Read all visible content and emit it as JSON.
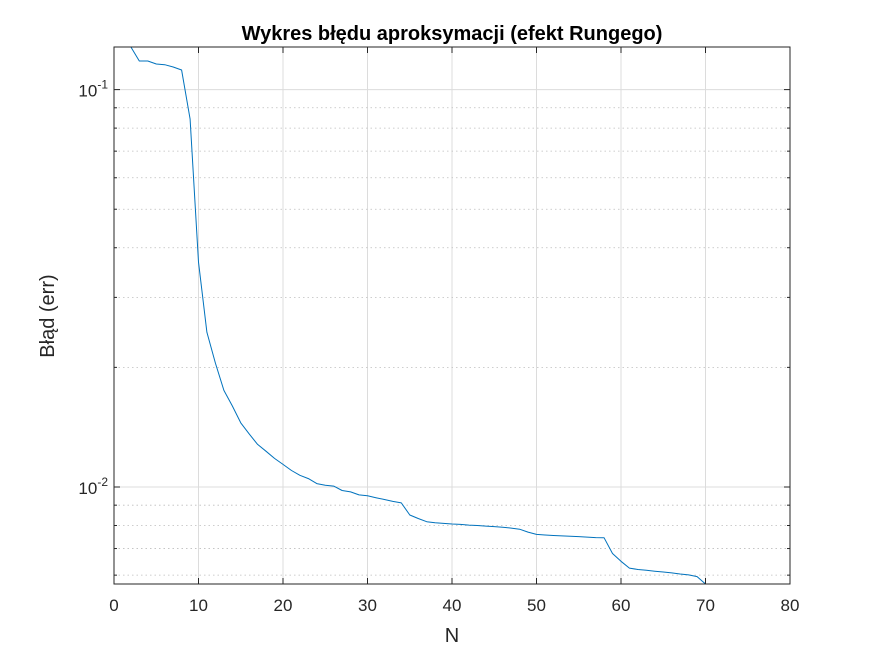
{
  "chart_data": {
    "type": "line",
    "title": "Wykres błędu aproksymacji (efekt Rungego)",
    "xlabel": "N",
    "ylabel": "Błąd (err)",
    "xlim": [
      0,
      80
    ],
    "ylim": [
      0.0057,
      0.128
    ],
    "yscale": "log",
    "grid": true,
    "x_ticks": [
      0,
      10,
      20,
      30,
      40,
      50,
      60,
      70,
      80
    ],
    "y_ticks": [
      {
        "value": 0.1,
        "base": "10",
        "exp": "-1"
      },
      {
        "value": 0.01,
        "base": "10",
        "exp": "-2"
      }
    ],
    "series": [
      {
        "color": "#0072BD",
        "x": [
          1,
          2,
          3,
          4,
          5,
          6,
          7,
          8,
          9,
          10,
          11,
          12,
          13,
          14,
          15,
          16,
          17,
          18,
          19,
          20,
          21,
          22,
          23,
          24,
          25,
          26,
          27,
          28,
          29,
          30,
          31,
          32,
          33,
          34,
          35,
          36,
          37,
          38,
          39,
          40,
          41,
          42,
          43,
          44,
          45,
          46,
          47,
          48,
          49,
          50,
          51,
          52,
          53,
          54,
          55,
          56,
          57,
          58,
          59,
          60,
          61,
          62,
          63,
          64,
          65,
          66,
          67,
          68,
          69,
          70,
          71
        ],
        "y": [
          0.128,
          0.128,
          0.118,
          0.118,
          0.116,
          0.1155,
          0.114,
          0.112,
          0.0843,
          0.0368,
          0.0245,
          0.0205,
          0.0175,
          0.016,
          0.0145,
          0.0136,
          0.0128,
          0.0123,
          0.0118,
          0.0114,
          0.011,
          0.0107,
          0.0105,
          0.0102,
          0.0101,
          0.01005,
          0.0098,
          0.00972,
          0.00955,
          0.0095,
          0.0094,
          0.0093,
          0.0092,
          0.00912,
          0.0085,
          0.00833,
          0.00818,
          0.00813,
          0.0081,
          0.00807,
          0.00805,
          0.00802,
          0.008,
          0.00797,
          0.00795,
          0.00792,
          0.00788,
          0.00783,
          0.0077,
          0.0076,
          0.00757,
          0.00755,
          0.00753,
          0.00752,
          0.0075,
          0.00748,
          0.00746,
          0.00745,
          0.0068,
          0.0065,
          0.00625,
          0.0062,
          0.00617,
          0.00614,
          0.00611,
          0.00608,
          0.00604,
          0.00601,
          0.00595,
          0.0057,
          0.0057
        ]
      }
    ]
  }
}
